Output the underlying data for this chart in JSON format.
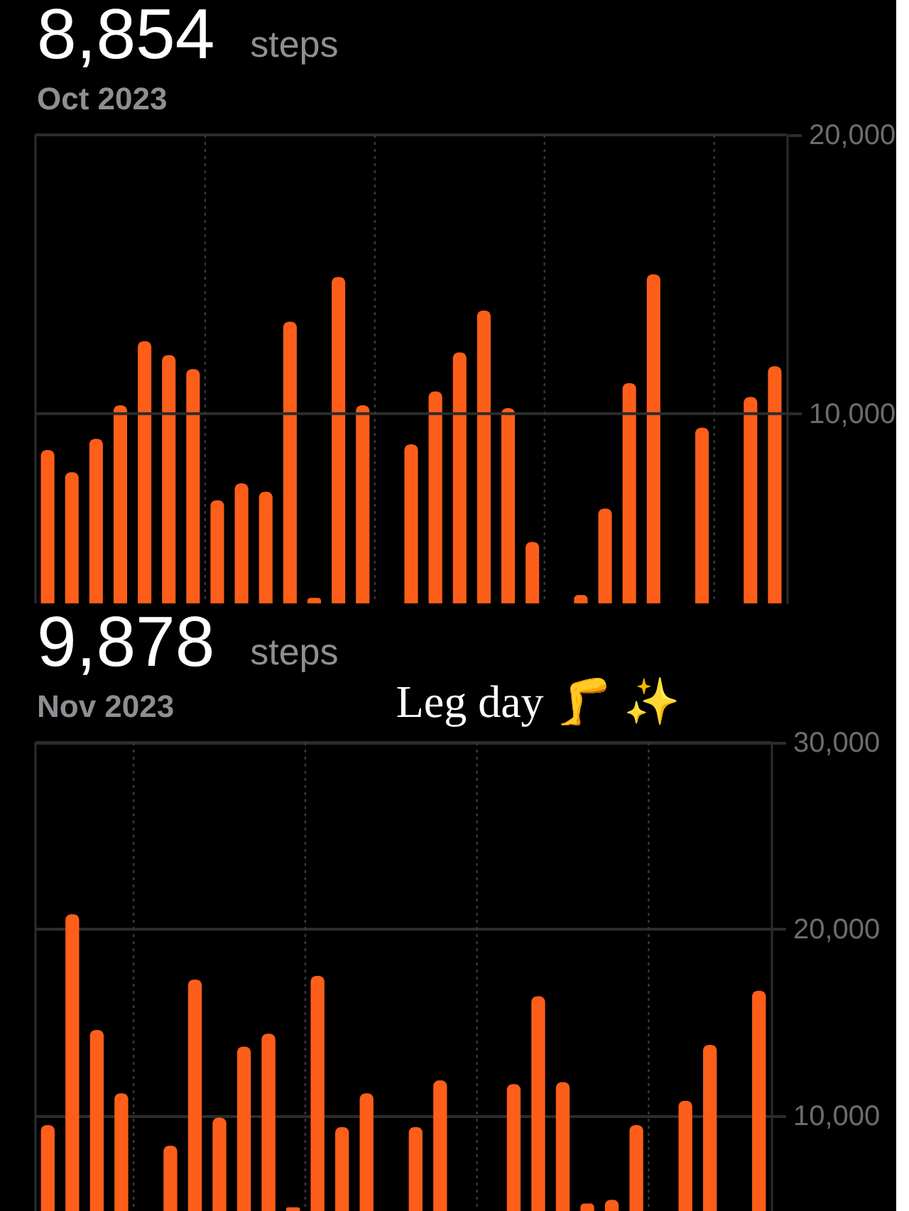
{
  "chart_data": [
    {
      "type": "bar",
      "title": "8,854",
      "subtitle": "Oct 2023",
      "annotations": [
        "steps"
      ],
      "categories": [
        null,
        null,
        null,
        null,
        null,
        null,
        null,
        null,
        null,
        null,
        null,
        null,
        null,
        null,
        null,
        null,
        null,
        null,
        null,
        null,
        null,
        null,
        null,
        null,
        null,
        null,
        null,
        null,
        null,
        null,
        null
      ],
      "values": [
        8700,
        7900,
        9100,
        10300,
        12600,
        12100,
        11600,
        6900,
        7500,
        7200,
        13300,
        3400,
        14900,
        10300,
        null,
        8900,
        10800,
        12200,
        13700,
        10200,
        5400,
        null,
        3500,
        6600,
        11100,
        15000,
        null,
        9500,
        null,
        10600,
        11700
      ],
      "color": "#fd5e1a",
      "ylim": [
        3200,
        20000
      ],
      "yticks": [
        {
          "value": 10000,
          "label": "10,000"
        },
        {
          "value": 20000,
          "label": "20,000"
        }
      ],
      "ref_lines": [
        {
          "axis": "y",
          "value": 10000,
          "color": "#2c2c2e",
          "line_style": "solid"
        }
      ],
      "tick_labels": "y"
    },
    {
      "type": "bar",
      "title": "9,878",
      "subtitle": "Nov 2023",
      "annotations": [
        "steps",
        "Leg day 🦵 ✨"
      ],
      "categories": [
        null,
        null,
        null,
        null,
        null,
        null,
        null,
        null,
        null,
        null,
        null,
        null,
        null,
        null,
        null,
        null,
        null,
        null,
        null,
        null,
        null,
        null,
        null,
        null,
        null,
        null,
        null,
        null,
        null,
        null
      ],
      "values": [
        9500,
        20800,
        14600,
        11200,
        null,
        8400,
        17300,
        9900,
        13700,
        14400,
        5100,
        17500,
        9400,
        11200,
        null,
        9400,
        11900,
        null,
        null,
        11700,
        16400,
        11800,
        5300,
        5500,
        9500,
        null,
        10800,
        13800,
        null,
        16700
      ],
      "color": "#fd5e1a",
      "ylim": [
        4900,
        30000
      ],
      "yticks": [
        {
          "value": 10000,
          "label": "10,000"
        },
        {
          "value": 20000,
          "label": "20,000"
        },
        {
          "value": 30000,
          "label": "30,000"
        }
      ],
      "grid": "y",
      "tick_labels": "y"
    }
  ]
}
